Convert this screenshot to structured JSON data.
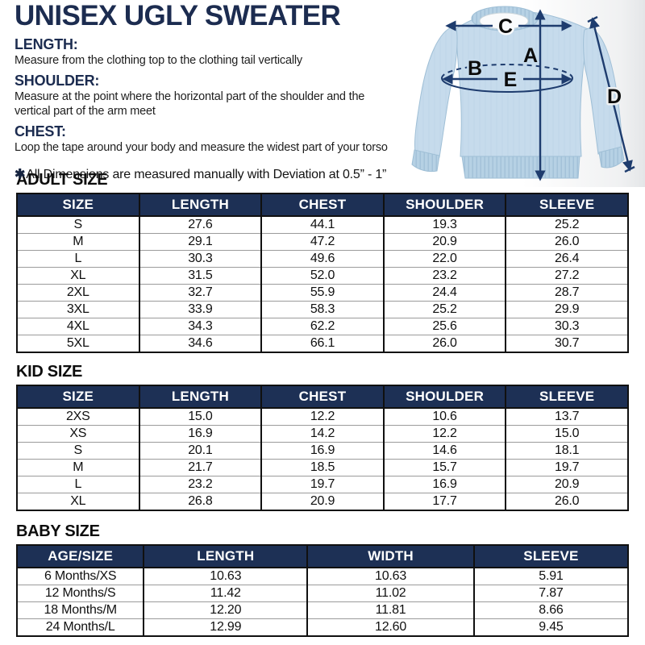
{
  "header": {
    "title": "UNISEX UGLY SWEATER",
    "instructions": [
      {
        "label": "LENGTH:",
        "text": "Measure from the clothing top to the clothing tail vertically"
      },
      {
        "label": "SHOULDER:",
        "text": "Measure at the point where the horizontal part of the shoulder and the vertical part of the arm meet"
      },
      {
        "label": "CHEST:",
        "text": "Loop the tape around your body and measure the widest part of your torso"
      }
    ],
    "note_mark": "✱",
    "note_text": "All Dimensions are measured manually with Deviation at 0.5” - 1”"
  },
  "diagram": {
    "description": "sweater measurement diagram",
    "markers": {
      "a": "A",
      "b": "B",
      "c": "C",
      "d": "D",
      "e": "E"
    }
  },
  "tables": [
    {
      "heading": "ADULT SIZE",
      "columns": [
        "SIZE",
        "LENGTH",
        "CHEST",
        "SHOULDER",
        "SLEEVE"
      ],
      "rows": [
        [
          "S",
          "27.6",
          "44.1",
          "19.3",
          "25.2"
        ],
        [
          "M",
          "29.1",
          "47.2",
          "20.9",
          "26.0"
        ],
        [
          "L",
          "30.3",
          "49.6",
          "22.0",
          "26.4"
        ],
        [
          "XL",
          "31.5",
          "52.0",
          "23.2",
          "27.2"
        ],
        [
          "2XL",
          "32.7",
          "55.9",
          "24.4",
          "28.7"
        ],
        [
          "3XL",
          "33.9",
          "58.3",
          "25.2",
          "29.9"
        ],
        [
          "4XL",
          "34.3",
          "62.2",
          "25.6",
          "30.3"
        ],
        [
          "5XL",
          "34.6",
          "66.1",
          "26.0",
          "30.7"
        ]
      ]
    },
    {
      "heading": "KID SIZE",
      "columns": [
        "SIZE",
        "LENGTH",
        "CHEST",
        "SHOULDER",
        "SLEEVE"
      ],
      "rows": [
        [
          "2XS",
          "15.0",
          "12.2",
          "10.6",
          "13.7"
        ],
        [
          "XS",
          "16.9",
          "14.2",
          "12.2",
          "15.0"
        ],
        [
          "S",
          "20.1",
          "16.9",
          "14.6",
          "18.1"
        ],
        [
          "M",
          "21.7",
          "18.5",
          "15.7",
          "19.7"
        ],
        [
          "L",
          "23.2",
          "19.7",
          "16.9",
          "20.9"
        ],
        [
          "XL",
          "26.8",
          "20.9",
          "17.7",
          "26.0"
        ]
      ]
    },
    {
      "heading": "BABY SIZE",
      "columns": [
        "AGE/SIZE",
        "LENGTH",
        "WIDTH",
        "SLEEVE"
      ],
      "rows": [
        [
          "6 Months/XS",
          "10.63",
          "10.63",
          "5.91"
        ],
        [
          "12 Months/S",
          "11.42",
          "11.02",
          "7.87"
        ],
        [
          "18 Months/M",
          "12.20",
          "11.81",
          "8.66"
        ],
        [
          "24 Months/L",
          "12.99",
          "12.60",
          "9.45"
        ]
      ]
    }
  ],
  "colors": {
    "navy_text": "#1c2c50",
    "table_header_bg": "#1d3055",
    "table_header_text": "#ffffff",
    "arrow_navy": "#1e3c6e",
    "sweater_blue": "#c6dbec"
  }
}
